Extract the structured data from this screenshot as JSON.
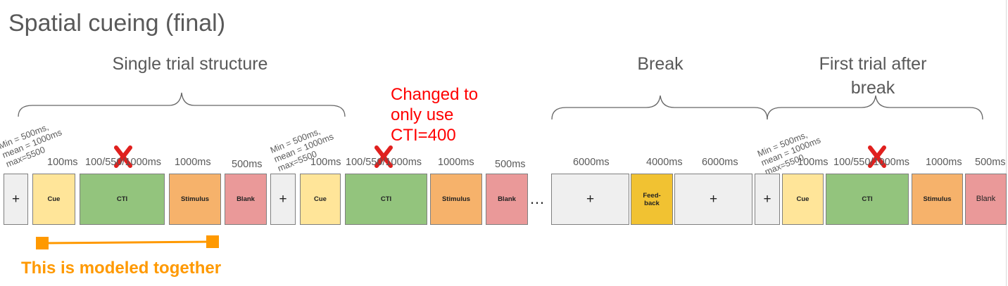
{
  "title": "Spatial cueing (final)",
  "sections": {
    "single_trial": "Single trial structure",
    "break": "Break",
    "first_trial_after_break": "First trial after\nbreak"
  },
  "jitter_label": "Min = 500ms,\nmean = 1000ms\nmax=5500",
  "durations": {
    "cue": "100ms",
    "cti": "100/550/1000ms",
    "stimulus": "1000ms",
    "blank": "500ms",
    "break_fix_1": "6000ms",
    "feedback": "4000ms",
    "break_fix_2": "6000ms"
  },
  "blocks": {
    "fixation": "+",
    "cue": "Cue",
    "cti": "CTI",
    "stimulus": "Stimulus",
    "blank": "Blank",
    "feedback": "Feed-\nback"
  },
  "ellipsis": "…",
  "note": "Changed to\nonly use\nCTI=400",
  "modeled_label": "This is modeled together",
  "colors": {
    "fixation": "#efefef",
    "cue": "#ffe599",
    "cti": "#93c47d",
    "stimulus": "#f6b26b",
    "blank": "#ea9999",
    "feedback": "#f1c232",
    "note": "#ff0000",
    "modeled": "#ff9900",
    "cross_mark": "#e0201e"
  }
}
